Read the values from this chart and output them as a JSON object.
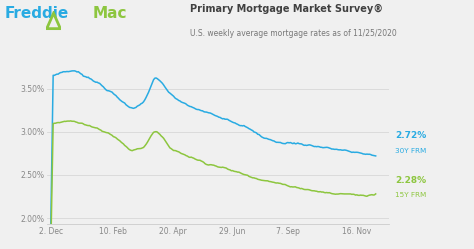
{
  "title": "Primary Mortgage Market Survey®",
  "subtitle": "U.S. weekly average mortgage rates as of 11/25/2020",
  "bg_color": "#f0f0f0",
  "plot_bg_color": "#f0f0f0",
  "line_30y_color": "#29abe2",
  "line_15y_color": "#8dc63f",
  "freddie_blue": "#29abe2",
  "freddie_green": "#8dc63f",
  "x_ticks": [
    "2. Dec",
    "10. Feb",
    "20. Apr",
    "29. Jun",
    "7. Sep",
    "16. Nov"
  ],
  "x_tick_pos": [
    0.0,
    0.192,
    0.375,
    0.558,
    0.731,
    0.942
  ],
  "ylim": [
    1.93,
    3.82
  ],
  "yticks": [
    2.0,
    2.5,
    3.0,
    3.5
  ],
  "ytick_labels": [
    "2.00%",
    "2.50%",
    "3.00%",
    "3.50%"
  ],
  "x_wp_30": [
    0.0,
    0.03,
    0.07,
    0.13,
    0.19,
    0.245,
    0.285,
    0.32,
    0.37,
    0.42,
    0.48,
    0.54,
    0.6,
    0.65,
    0.7,
    0.75,
    0.8,
    0.87,
    0.92,
    0.96,
    1.0
  ],
  "y_wp_30": [
    3.64,
    3.69,
    3.71,
    3.6,
    3.44,
    3.27,
    3.33,
    3.65,
    3.42,
    3.3,
    3.22,
    3.15,
    3.05,
    2.94,
    2.87,
    2.87,
    2.84,
    2.8,
    2.77,
    2.75,
    2.72
  ],
  "x_wp_15": [
    0.0,
    0.03,
    0.07,
    0.13,
    0.19,
    0.245,
    0.285,
    0.32,
    0.37,
    0.42,
    0.48,
    0.54,
    0.6,
    0.65,
    0.7,
    0.75,
    0.8,
    0.87,
    0.92,
    0.96,
    1.0
  ],
  "y_wp_15": [
    3.09,
    3.11,
    3.13,
    3.05,
    2.96,
    2.78,
    2.82,
    3.03,
    2.8,
    2.72,
    2.63,
    2.57,
    2.5,
    2.44,
    2.4,
    2.36,
    2.32,
    2.28,
    2.28,
    2.26,
    2.28
  ]
}
